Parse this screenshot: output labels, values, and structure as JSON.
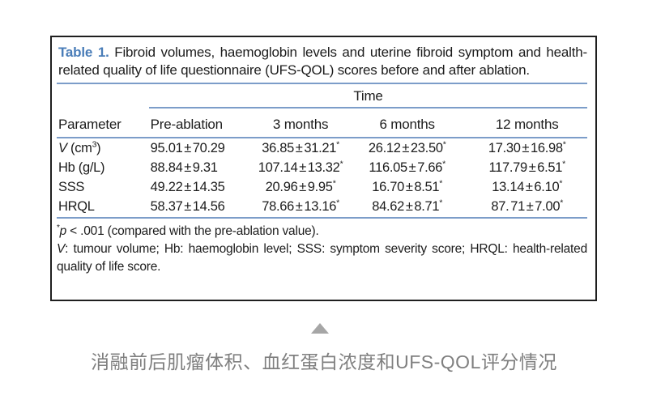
{
  "table": {
    "label": "Table 1.",
    "title": " Fibroid volumes, haemoglobin levels and uterine fibroid symptom and health-related quality of life questionnaire (UFS-QOL) scores before and after ablation.",
    "span_header": "Time",
    "columns": [
      "Parameter",
      "Pre-ablation",
      "3 months",
      "6 months",
      "12 months"
    ],
    "rows": [
      {
        "p_it": "V",
        "p_main": " (cm",
        "p_sup": "3",
        "p_post": ")",
        "cells": [
          {
            "v": "95.01 ± 70.29",
            "s": ""
          },
          {
            "v": "36.85 ± 31.21",
            "s": "*"
          },
          {
            "v": "26.12 ± 23.50",
            "s": "*"
          },
          {
            "v": "17.30 ± 16.98",
            "s": "*"
          }
        ]
      },
      {
        "p_it": "",
        "p_main": "Hb (g/L)",
        "p_sup": "",
        "p_post": "",
        "cells": [
          {
            "v": "88.84 ± 9.31",
            "s": ""
          },
          {
            "v": "107.14 ± 13.32",
            "s": "*"
          },
          {
            "v": "116.05 ± 7.66",
            "s": "*"
          },
          {
            "v": "117.79 ± 6.51",
            "s": "*"
          }
        ]
      },
      {
        "p_it": "",
        "p_main": "SSS",
        "p_sup": "",
        "p_post": "",
        "cells": [
          {
            "v": "49.22 ± 14.35",
            "s": ""
          },
          {
            "v": "20.96 ± 9.95",
            "s": "*"
          },
          {
            "v": "16.70 ± 8.51",
            "s": "*"
          },
          {
            "v": "13.14 ± 6.10",
            "s": "*"
          }
        ]
      },
      {
        "p_it": "",
        "p_main": "HRQL",
        "p_sup": "",
        "p_post": "",
        "cells": [
          {
            "v": "58.37 ± 14.56",
            "s": ""
          },
          {
            "v": "78.66 ± 13.16",
            "s": "*"
          },
          {
            "v": "84.62 ± 8.71",
            "s": "*"
          },
          {
            "v": "87. 71 ± 7.00",
            "s": "*"
          }
        ]
      }
    ],
    "footnotes": {
      "f1_star": "*",
      "f1_p": "p",
      "f1_rest": " < .001 (compared with the pre-ablation value).",
      "f2_it": "V",
      "f2_rest": ": tumour volume; Hb: haemoglobin level; SSS: symptom severity score; HRQL: health-related quality of life score."
    }
  },
  "caption": {
    "text": "消融前后肌瘤体积、血红蛋白浓度和UFS-QOL评分情况"
  },
  "icons": {
    "triangle": "up-triangle-icon"
  },
  "colors": {
    "accent_blue_label": "#4a7db8",
    "rule_blue": "#7c9dc9",
    "border_black": "#1f1f1f",
    "caption_gray": "#7f7f7f",
    "triangle_gray": "#a6a6a6"
  },
  "chart_data": {
    "type": "table",
    "title": "Table 1. Fibroid volumes, haemoglobin levels and uterine fibroid symptom and health-related quality of life questionnaire (UFS-QOL) scores before and after ablation.",
    "span_header": "Time",
    "columns": [
      "Parameter",
      "Pre-ablation",
      "3 months",
      "6 months",
      "12 months"
    ],
    "rows": [
      [
        "V (cm³)",
        "95.01 ± 70.29",
        "36.85 ± 31.21*",
        "26.12 ± 23.50*",
        "17.30 ± 16.98*"
      ],
      [
        "Hb (g/L)",
        "88.84 ± 9.31",
        "107.14 ± 13.32*",
        "116.05 ± 7.66*",
        "117.79 ± 6.51*"
      ],
      [
        "SSS",
        "49.22 ± 14.35",
        "20.96 ± 9.95*",
        "16.70 ± 8.51*",
        "13.14 ± 6.10*"
      ],
      [
        "HRQL",
        "58.37 ± 14.56",
        "78.66 ± 13.16*",
        "84.62 ± 8.71*",
        "87. 71 ± 7.00*"
      ]
    ],
    "footnotes": [
      "*p < .001 (compared with the pre-ablation value).",
      "V: tumour volume; Hb: haemoglobin level; SSS: symptom severity score; HRQL: health-related quality of life score."
    ]
  }
}
